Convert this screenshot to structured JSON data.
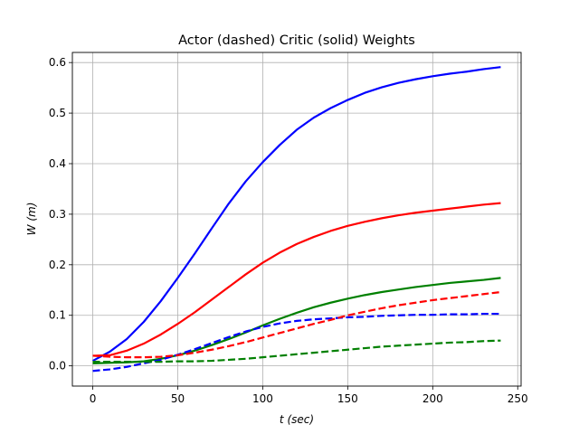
{
  "chart_data": {
    "type": "line",
    "title": "Actor (dashed) Critic (solid) Weights",
    "xlabel": {
      "var": "t",
      "unit": "(sec)"
    },
    "ylabel": {
      "var": "W",
      "unit": "(m)"
    },
    "xlim": [
      -12,
      252
    ],
    "ylim": [
      -0.04,
      0.62
    ],
    "xticks": [
      0,
      50,
      100,
      150,
      200,
      250
    ],
    "yticks": [
      0.0,
      0.1,
      0.2,
      0.3,
      0.4,
      0.5,
      0.6
    ],
    "xtick_labels": [
      "0",
      "50",
      "100",
      "150",
      "200",
      "250"
    ],
    "ytick_labels": [
      "0.0",
      "0.1",
      "0.2",
      "0.3",
      "0.4",
      "0.5",
      "0.6"
    ],
    "grid": true,
    "x": [
      0,
      10,
      20,
      30,
      40,
      50,
      60,
      70,
      80,
      90,
      100,
      110,
      120,
      130,
      140,
      150,
      160,
      170,
      180,
      190,
      200,
      210,
      220,
      230,
      240
    ],
    "series": [
      {
        "id": "critic-blue",
        "style": "solid",
        "color": "#0000ff",
        "values": [
          0.01,
          0.028,
          0.053,
          0.087,
          0.128,
          0.174,
          0.222,
          0.272,
          0.321,
          0.365,
          0.403,
          0.437,
          0.467,
          0.491,
          0.51,
          0.526,
          0.54,
          0.551,
          0.56,
          0.567,
          0.573,
          0.578,
          0.582,
          0.587,
          0.591
        ]
      },
      {
        "id": "critic-red",
        "style": "solid",
        "color": "#ff0000",
        "values": [
          0.02,
          0.021,
          0.03,
          0.044,
          0.062,
          0.083,
          0.106,
          0.131,
          0.156,
          0.181,
          0.204,
          0.224,
          0.241,
          0.255,
          0.267,
          0.277,
          0.285,
          0.292,
          0.298,
          0.303,
          0.307,
          0.311,
          0.315,
          0.319,
          0.322
        ]
      },
      {
        "id": "critic-green",
        "style": "solid",
        "color": "#008000",
        "values": [
          0.005,
          0.006,
          0.007,
          0.009,
          0.014,
          0.021,
          0.03,
          0.041,
          0.053,
          0.066,
          0.08,
          0.093,
          0.105,
          0.116,
          0.125,
          0.133,
          0.14,
          0.146,
          0.151,
          0.156,
          0.16,
          0.164,
          0.167,
          0.17,
          0.174
        ]
      },
      {
        "id": "actor-blue",
        "style": "dashed",
        "color": "#0000ff",
        "values": [
          -0.01,
          -0.007,
          -0.002,
          0.005,
          0.012,
          0.022,
          0.033,
          0.045,
          0.057,
          0.068,
          0.077,
          0.084,
          0.089,
          0.092,
          0.094,
          0.096,
          0.097,
          0.099,
          0.1,
          0.101,
          0.101,
          0.102,
          0.102,
          0.103,
          0.103
        ]
      },
      {
        "id": "actor-red",
        "style": "dashed",
        "color": "#ff0000",
        "values": [
          0.02,
          0.018,
          0.017,
          0.017,
          0.018,
          0.021,
          0.026,
          0.032,
          0.039,
          0.047,
          0.056,
          0.065,
          0.074,
          0.083,
          0.091,
          0.1,
          0.107,
          0.114,
          0.12,
          0.125,
          0.13,
          0.134,
          0.138,
          0.142,
          0.146
        ]
      },
      {
        "id": "actor-green",
        "style": "dashed",
        "color": "#008000",
        "values": [
          0.008,
          0.008,
          0.008,
          0.008,
          0.008,
          0.009,
          0.009,
          0.01,
          0.012,
          0.014,
          0.017,
          0.02,
          0.023,
          0.026,
          0.029,
          0.032,
          0.035,
          0.038,
          0.04,
          0.042,
          0.044,
          0.046,
          0.047,
          0.049,
          0.05
        ]
      }
    ]
  }
}
